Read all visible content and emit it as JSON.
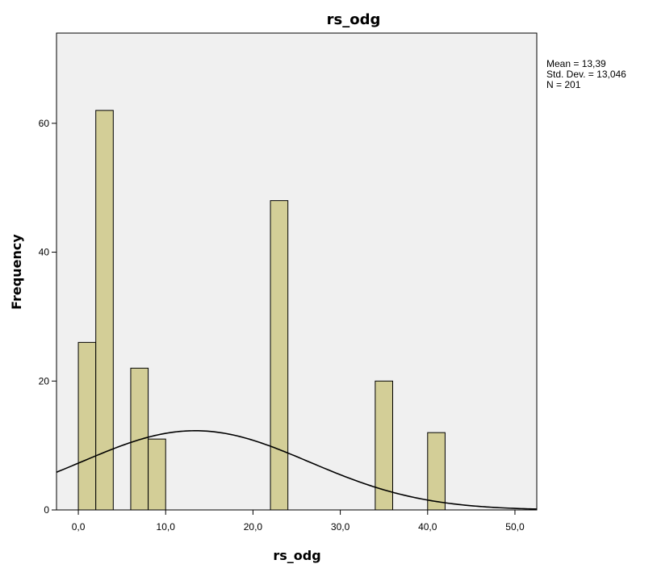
{
  "colors": {
    "plot_background": "#f0f0f0",
    "bar_fill": "#d3ce97",
    "bar_stroke": "#000000",
    "curve": "#000000"
  },
  "stats": {
    "mean": "Mean = 13,39",
    "std_dev": "Std. Dev. = 13,046",
    "n": "N = 201"
  },
  "chart_data": {
    "type": "bar",
    "title": "rs_odg",
    "xlabel": "rs_odg",
    "ylabel": "Frequency",
    "xlim": [
      -2.5,
      52.5
    ],
    "ylim": [
      0,
      74
    ],
    "x_ticks": [
      {
        "value": 0,
        "label": "0,0"
      },
      {
        "value": 10,
        "label": "10,0"
      },
      {
        "value": 20,
        "label": "20,0"
      },
      {
        "value": 30,
        "label": "30,0"
      },
      {
        "value": 40,
        "label": "40,0"
      },
      {
        "value": 50,
        "label": "50,0"
      }
    ],
    "y_ticks": [
      {
        "value": 0,
        "label": "0"
      },
      {
        "value": 20,
        "label": "20"
      },
      {
        "value": 40,
        "label": "40"
      },
      {
        "value": 60,
        "label": "60"
      }
    ],
    "bin_width": 2,
    "bins": [
      {
        "start": 0,
        "count": 26
      },
      {
        "start": 2,
        "count": 62
      },
      {
        "start": 6,
        "count": 22
      },
      {
        "start": 8,
        "count": 11
      },
      {
        "start": 22,
        "count": 48
      },
      {
        "start": 34,
        "count": 20
      },
      {
        "start": 40,
        "count": 12
      }
    ],
    "normal_curve": {
      "mean": 13.39,
      "std_dev": 13.046,
      "n": 201
    },
    "grid": false
  }
}
